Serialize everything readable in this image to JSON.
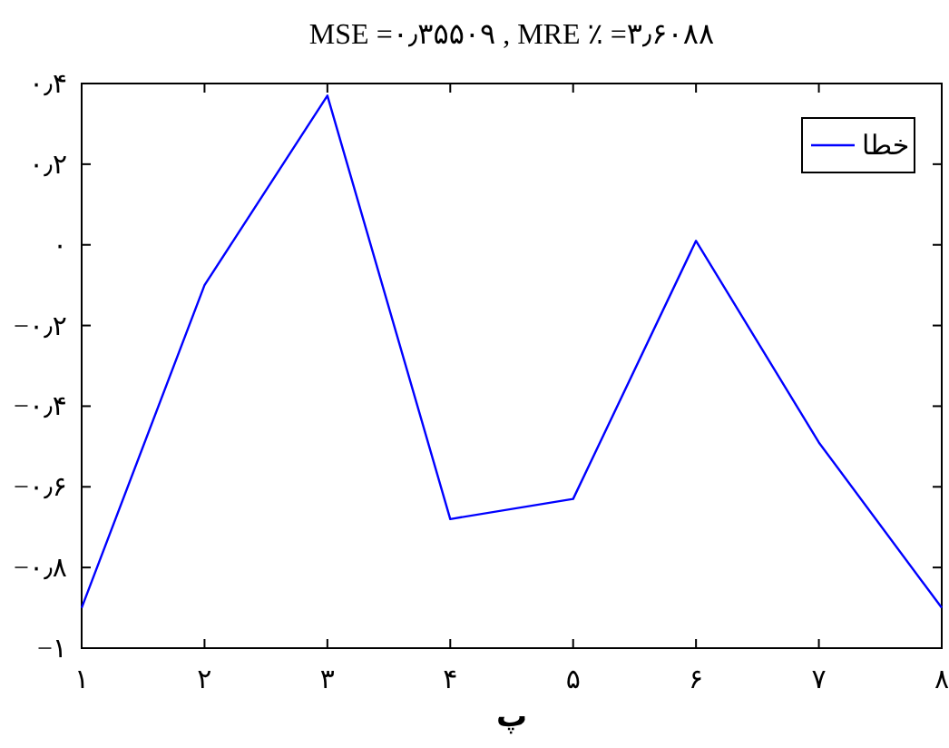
{
  "chart_data": {
    "type": "line",
    "title": "MSE =۰٫۳۵۵۰۹ , MRE ٪ =۳٫۶۰۸۸",
    "xlabel": "پ",
    "x": [
      1,
      2,
      3,
      4,
      5,
      6,
      7,
      8
    ],
    "xlim": [
      1,
      8
    ],
    "ylim": [
      -1,
      0.4
    ],
    "xticks": [
      {
        "value": 1,
        "label": "۱"
      },
      {
        "value": 2,
        "label": "۲"
      },
      {
        "value": 3,
        "label": "۳"
      },
      {
        "value": 4,
        "label": "۴"
      },
      {
        "value": 5,
        "label": "۵"
      },
      {
        "value": 6,
        "label": "۶"
      },
      {
        "value": 7,
        "label": "۷"
      },
      {
        "value": 8,
        "label": "۸"
      }
    ],
    "yticks": [
      {
        "value": -1,
        "label": "−۱"
      },
      {
        "value": -0.8,
        "label": "−۰٫۸"
      },
      {
        "value": -0.6,
        "label": "−۰٫۶"
      },
      {
        "value": -0.4,
        "label": "−۰٫۴"
      },
      {
        "value": -0.2,
        "label": "−۰٫۲"
      },
      {
        "value": 0,
        "label": "۰"
      },
      {
        "value": 0.2,
        "label": "۰٫۲"
      },
      {
        "value": 0.4,
        "label": "۰٫۴"
      }
    ],
    "series": [
      {
        "name": "خطا",
        "color": "#0000ff",
        "values": [
          -0.9,
          -0.1,
          0.37,
          -0.68,
          -0.63,
          0.01,
          -0.49,
          -0.9
        ]
      }
    ],
    "legend": "top right",
    "grid": false,
    "marker": "none",
    "line_style": "solid"
  }
}
